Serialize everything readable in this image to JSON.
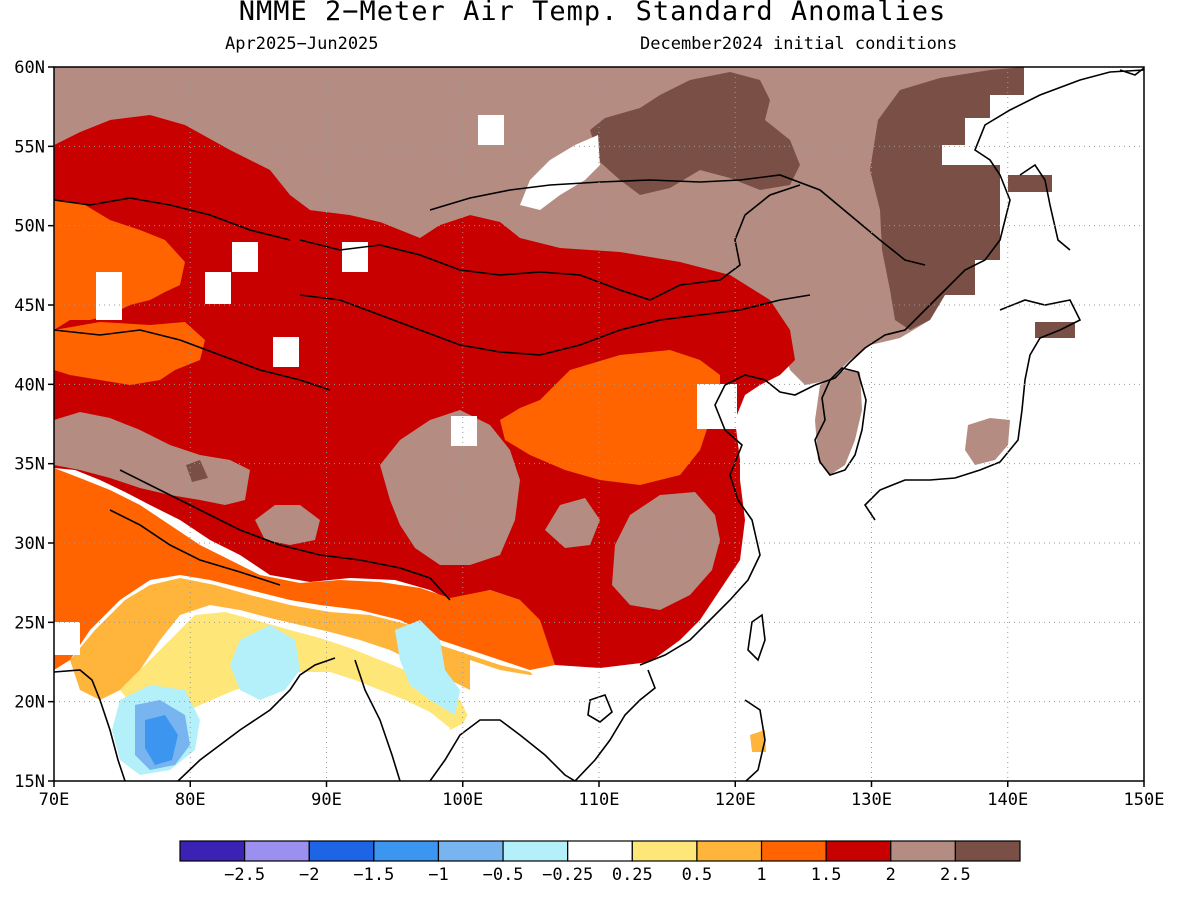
{
  "title": "NMME 2−Meter Air Temp. Standard Anomalies",
  "season": "Apr2025−Jun2025",
  "init": "December2024 initial conditions",
  "map": {
    "lon_range": [
      70,
      150
    ],
    "lat_range": [
      15,
      60
    ],
    "lon_ticks": [
      "70E",
      "80E",
      "90E",
      "100E",
      "110E",
      "120E",
      "130E",
      "140E",
      "150E"
    ],
    "lat_ticks": [
      "15N",
      "20N",
      "25N",
      "30N",
      "35N",
      "40N",
      "45N",
      "50N",
      "55N",
      "60N"
    ],
    "grid": "dotted"
  },
  "colorbar": {
    "colors": [
      "#3b22b4",
      "#9b8ff0",
      "#1e64e6",
      "#3c96f0",
      "#78b4f0",
      "#b4f0fa",
      "#ffffff",
      "#ffe678",
      "#ffb43c",
      "#ff6400",
      "#c80000",
      "#b48c82",
      "#7a5046"
    ],
    "labels": [
      "−2.5",
      "−2",
      "−1.5",
      "−1",
      "−0.5",
      "−0.25",
      "0.25",
      "0.5",
      "1",
      "1.5",
      "2",
      "2.5"
    ]
  },
  "palette": {
    "ocean": "#ffffff",
    "warm_very_high": "#7a5046",
    "warm_high": "#b48c82",
    "warm_2": "#c80000",
    "warm_15": "#ff6400",
    "warm_1": "#ffb43c",
    "warm_05": "#ffe678",
    "neutral": "#ffffff",
    "cool_025": "#b4f0fa",
    "cool_05": "#78b4f0",
    "cool_1": "#3c96f0"
  }
}
